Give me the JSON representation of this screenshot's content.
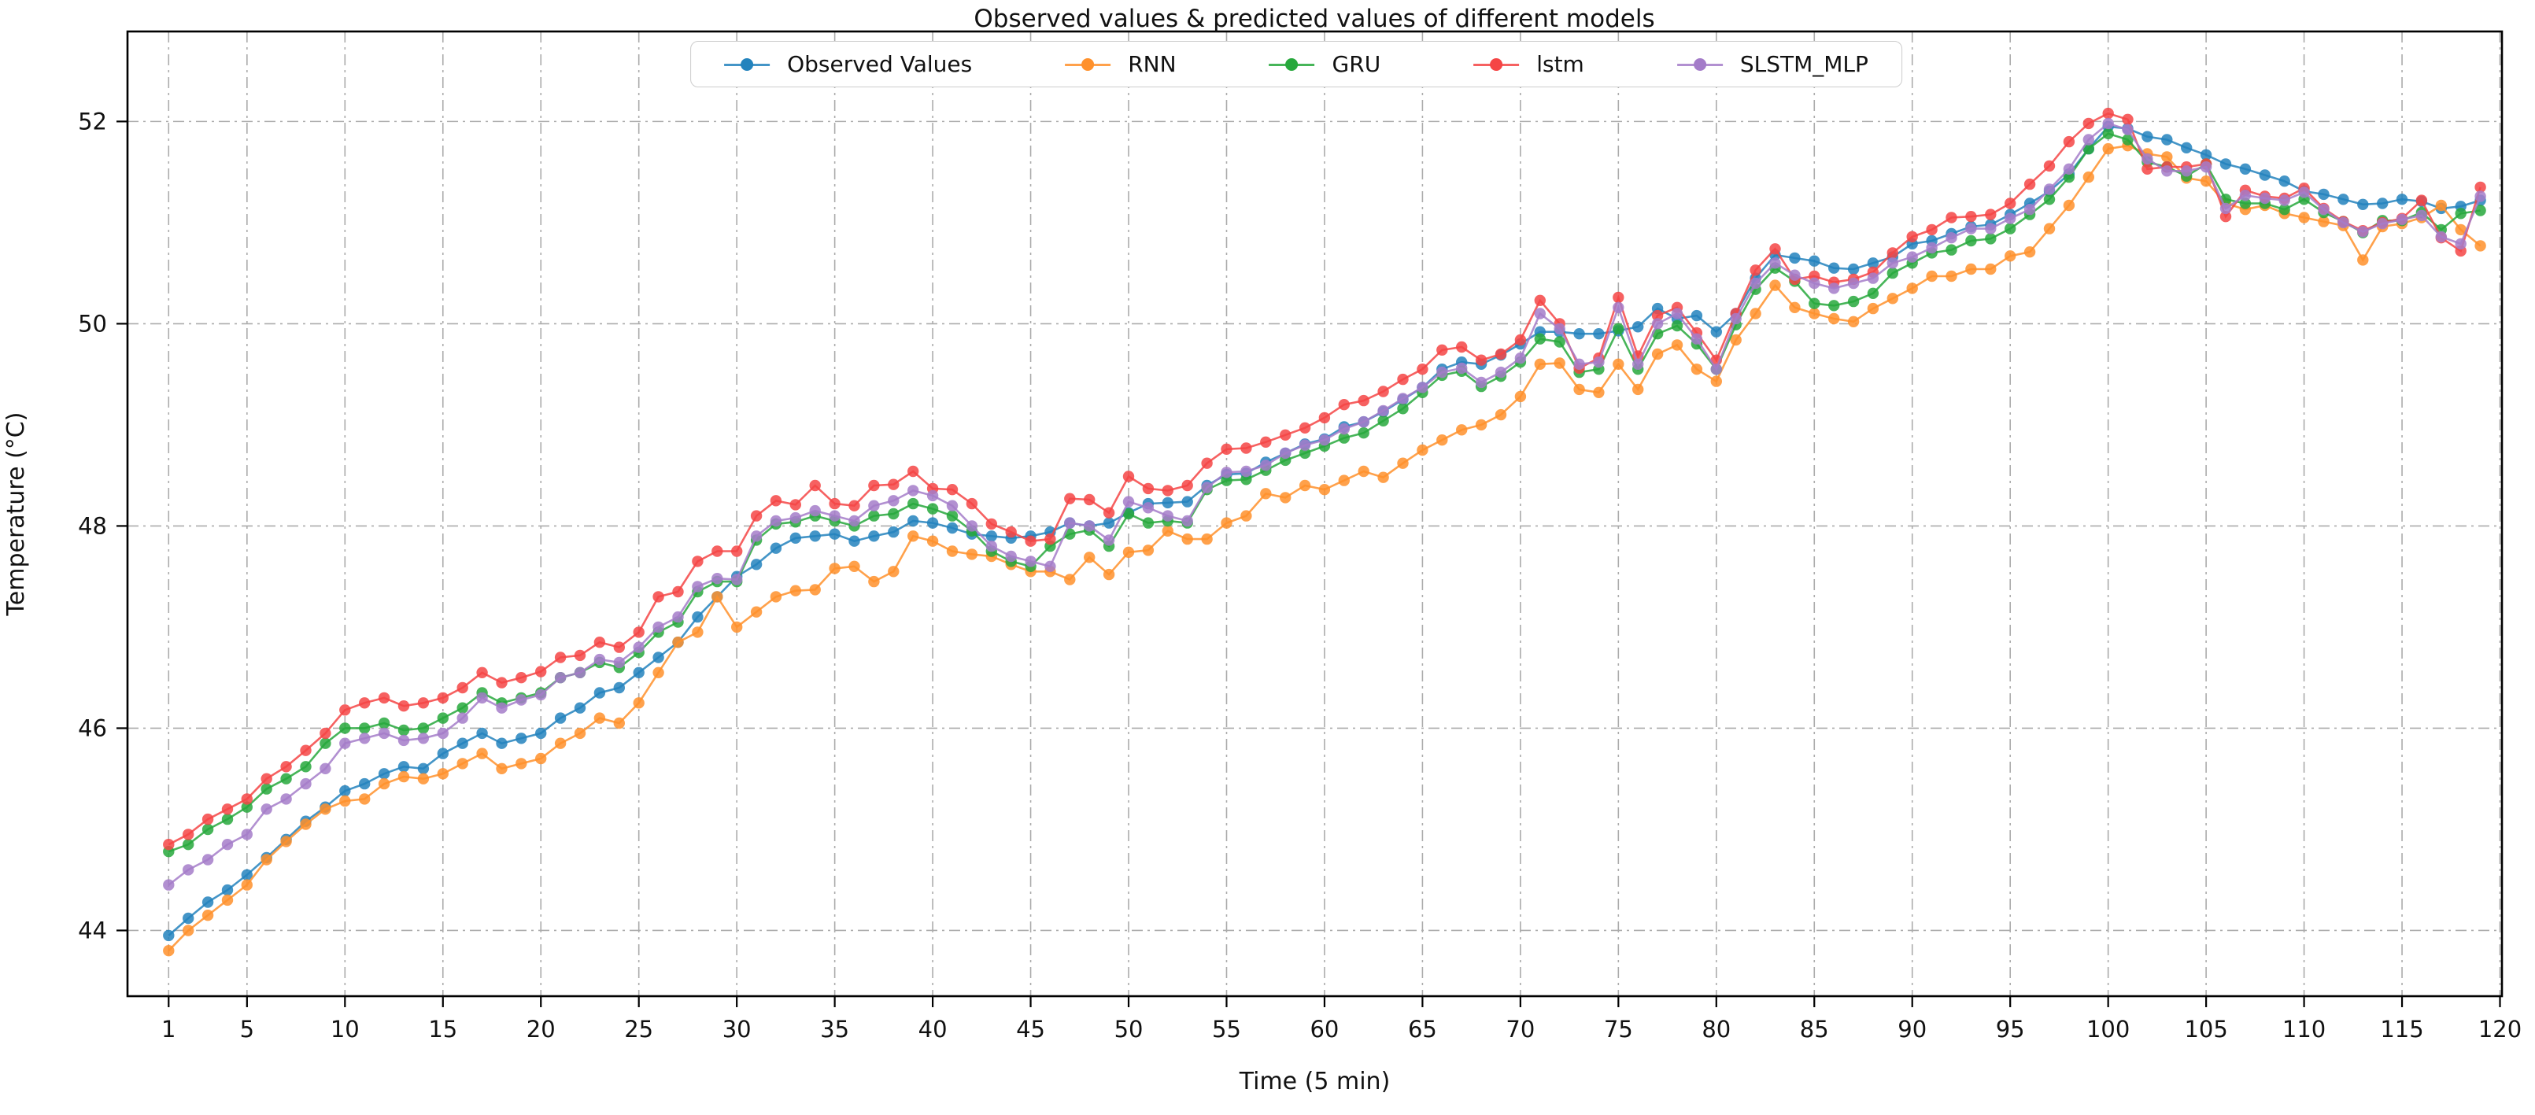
{
  "title": "Observed values & predicted values of different models",
  "chart_data": {
    "type": "line",
    "title": "Observed values & predicted values of different models",
    "xlabel": "Time (5 min)",
    "ylabel": "Temperature (°C)",
    "x_tick_labels": [
      1,
      5,
      10,
      15,
      20,
      25,
      30,
      35,
      40,
      45,
      50,
      55,
      60,
      65,
      70,
      75,
      80,
      85,
      90,
      95,
      100,
      105,
      110,
      115,
      120
    ],
    "y_tick_labels": [
      44,
      46,
      48,
      50,
      52
    ],
    "xlim": [
      -1.1,
      120.1
    ],
    "ylim": [
      43.35,
      52.89
    ],
    "grid": "dash-dot both axes",
    "legend_position": "upper center",
    "x_start": 1,
    "x_step": 1,
    "n_points": 119,
    "series": [
      {
        "name": "Observed Values",
        "color": "#2383bd",
        "values": [
          43.95,
          44.12,
          44.28,
          44.4,
          44.55,
          44.72,
          44.9,
          45.08,
          45.22,
          45.38,
          45.45,
          45.55,
          45.62,
          45.6,
          45.75,
          45.85,
          45.95,
          45.85,
          45.9,
          45.95,
          46.1,
          46.2,
          46.35,
          46.4,
          46.55,
          46.7,
          46.85,
          47.1,
          47.3,
          47.5,
          47.62,
          47.78,
          47.88,
          47.9,
          47.92,
          47.85,
          47.9,
          47.94,
          48.05,
          48.03,
          47.98,
          47.92,
          47.9,
          47.88,
          47.9,
          47.94,
          48.03,
          48.0,
          48.03,
          48.13,
          48.22,
          48.23,
          48.24,
          48.4,
          48.51,
          48.52,
          48.63,
          48.72,
          48.81,
          48.86,
          48.98,
          49.03,
          49.13,
          49.25,
          49.37,
          49.55,
          49.62,
          49.6,
          49.69,
          49.8,
          49.92,
          49.92,
          49.9,
          49.9,
          49.93,
          49.97,
          50.15,
          50.05,
          50.08,
          49.92,
          50.1,
          50.45,
          50.68,
          50.65,
          50.62,
          50.55,
          50.54,
          50.6,
          50.66,
          50.79,
          50.82,
          50.89,
          50.96,
          50.98,
          51.08,
          51.19,
          51.31,
          51.48,
          51.73,
          51.95,
          51.93,
          51.85,
          51.82,
          51.74,
          51.67,
          51.58,
          51.53,
          51.47,
          51.41,
          51.31,
          51.28,
          51.23,
          51.18,
          51.19,
          51.23,
          51.21,
          51.14,
          51.16,
          51.22
        ]
      },
      {
        "name": "RNN",
        "color": "#ff912c",
        "values": [
          43.8,
          44.0,
          44.15,
          44.3,
          44.45,
          44.7,
          44.88,
          45.05,
          45.2,
          45.28,
          45.3,
          45.45,
          45.52,
          45.5,
          45.55,
          45.65,
          45.75,
          45.6,
          45.65,
          45.7,
          45.85,
          45.95,
          46.1,
          46.05,
          46.25,
          46.55,
          46.85,
          46.95,
          47.3,
          47.0,
          47.15,
          47.3,
          47.36,
          47.37,
          47.58,
          47.6,
          47.45,
          47.55,
          47.9,
          47.85,
          47.75,
          47.72,
          47.7,
          47.62,
          47.55,
          47.55,
          47.47,
          47.69,
          47.52,
          47.74,
          47.76,
          47.95,
          47.87,
          47.87,
          48.03,
          48.1,
          48.32,
          48.28,
          48.4,
          48.36,
          48.45,
          48.54,
          48.48,
          48.62,
          48.75,
          48.85,
          48.95,
          49.0,
          49.1,
          49.28,
          49.6,
          49.61,
          49.35,
          49.32,
          49.6,
          49.35,
          49.7,
          49.79,
          49.55,
          49.43,
          49.84,
          50.1,
          50.38,
          50.16,
          50.1,
          50.05,
          50.02,
          50.15,
          50.25,
          50.35,
          50.47,
          50.47,
          50.54,
          50.54,
          50.67,
          50.71,
          50.94,
          51.17,
          51.45,
          51.73,
          51.76,
          51.68,
          51.65,
          51.44,
          51.41,
          51.19,
          51.13,
          51.17,
          51.09,
          51.05,
          51.01,
          50.97,
          50.63,
          50.96,
          50.99,
          51.05,
          51.17,
          50.93,
          50.77
        ]
      },
      {
        "name": "GRU",
        "color": "#27a83c",
        "values": [
          44.78,
          44.85,
          45.0,
          45.1,
          45.22,
          45.4,
          45.5,
          45.62,
          45.85,
          46.0,
          46.0,
          46.05,
          45.98,
          46.0,
          46.1,
          46.2,
          46.35,
          46.25,
          46.3,
          46.35,
          46.5,
          46.55,
          46.65,
          46.6,
          46.75,
          46.95,
          47.05,
          47.35,
          47.45,
          47.45,
          47.86,
          48.02,
          48.04,
          48.1,
          48.05,
          48.0,
          48.1,
          48.12,
          48.22,
          48.17,
          48.1,
          47.95,
          47.75,
          47.65,
          47.6,
          47.8,
          47.92,
          47.96,
          47.8,
          48.12,
          48.03,
          48.05,
          48.03,
          48.36,
          48.45,
          48.46,
          48.55,
          48.65,
          48.72,
          48.79,
          48.87,
          48.92,
          49.04,
          49.16,
          49.32,
          49.49,
          49.53,
          49.38,
          49.48,
          49.62,
          49.85,
          49.82,
          49.52,
          49.55,
          49.95,
          49.55,
          49.9,
          49.98,
          49.8,
          49.55,
          49.99,
          50.34,
          50.55,
          50.42,
          50.2,
          50.18,
          50.22,
          50.3,
          50.5,
          50.6,
          50.7,
          50.73,
          50.82,
          50.84,
          50.94,
          51.08,
          51.23,
          51.45,
          51.73,
          51.88,
          51.82,
          51.6,
          51.55,
          51.46,
          51.58,
          51.23,
          51.19,
          51.19,
          51.13,
          51.23,
          51.1,
          51.01,
          50.9,
          51.02,
          51.02,
          51.1,
          50.93,
          51.09,
          51.12
        ]
      },
      {
        "name": "lstm",
        "color": "#f54545",
        "values": [
          44.85,
          44.95,
          45.1,
          45.2,
          45.3,
          45.5,
          45.62,
          45.78,
          45.95,
          46.18,
          46.25,
          46.3,
          46.22,
          46.25,
          46.3,
          46.4,
          46.55,
          46.45,
          46.5,
          46.56,
          46.7,
          46.72,
          46.85,
          46.8,
          46.95,
          47.3,
          47.35,
          47.65,
          47.75,
          47.75,
          48.1,
          48.25,
          48.21,
          48.4,
          48.22,
          48.2,
          48.4,
          48.41,
          48.54,
          48.37,
          48.36,
          48.22,
          48.02,
          47.94,
          47.85,
          47.87,
          48.27,
          48.26,
          48.13,
          48.49,
          48.37,
          48.35,
          48.4,
          48.62,
          48.76,
          48.77,
          48.83,
          48.9,
          48.97,
          49.07,
          49.2,
          49.24,
          49.33,
          49.45,
          49.55,
          49.74,
          49.77,
          49.64,
          49.7,
          49.84,
          50.23,
          50.0,
          49.56,
          49.66,
          50.26,
          49.68,
          50.08,
          50.16,
          49.91,
          49.64,
          50.1,
          50.53,
          50.74,
          50.44,
          50.47,
          50.41,
          50.44,
          50.51,
          50.7,
          50.86,
          50.93,
          51.05,
          51.06,
          51.08,
          51.19,
          51.38,
          51.56,
          51.8,
          51.98,
          52.08,
          52.02,
          51.53,
          51.55,
          51.55,
          51.58,
          51.06,
          51.32,
          51.26,
          51.24,
          51.34,
          51.14,
          51.01,
          50.92,
          51.0,
          51.04,
          51.22,
          50.85,
          50.72,
          51.35
        ]
      },
      {
        "name": "SLSTM_MLP",
        "color": "#a47cc9",
        "values": [
          44.45,
          44.6,
          44.7,
          44.85,
          44.95,
          45.2,
          45.3,
          45.45,
          45.6,
          45.85,
          45.9,
          45.95,
          45.88,
          45.9,
          45.95,
          46.1,
          46.3,
          46.2,
          46.28,
          46.33,
          46.5,
          46.55,
          46.68,
          46.65,
          46.8,
          47.0,
          47.1,
          47.4,
          47.48,
          47.47,
          47.9,
          48.05,
          48.08,
          48.15,
          48.1,
          48.05,
          48.2,
          48.25,
          48.35,
          48.3,
          48.2,
          48.0,
          47.8,
          47.7,
          47.65,
          47.6,
          48.03,
          48.0,
          47.86,
          48.24,
          48.18,
          48.1,
          48.05,
          48.38,
          48.53,
          48.54,
          48.6,
          48.72,
          48.8,
          48.85,
          48.96,
          49.03,
          49.14,
          49.26,
          49.37,
          49.52,
          49.56,
          49.42,
          49.52,
          49.66,
          50.1,
          49.95,
          49.6,
          49.62,
          50.16,
          49.6,
          50.0,
          50.1,
          49.85,
          49.55,
          50.05,
          50.4,
          50.6,
          50.48,
          50.4,
          50.35,
          50.4,
          50.45,
          50.6,
          50.66,
          50.75,
          50.85,
          50.94,
          50.94,
          51.04,
          51.13,
          51.33,
          51.53,
          51.82,
          51.98,
          51.92,
          51.63,
          51.51,
          51.51,
          51.55,
          51.14,
          51.27,
          51.24,
          51.22,
          51.3,
          51.13,
          51.0,
          50.91,
          50.99,
          51.03,
          51.07,
          50.86,
          50.79,
          51.26
        ]
      }
    ]
  }
}
